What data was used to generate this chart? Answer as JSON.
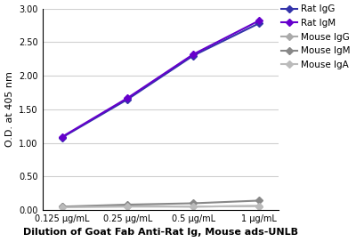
{
  "x_labels": [
    "0.125 μg/mL",
    "0.25 μg/mL",
    "0.5 μg/mL",
    "1 μg/mL"
  ],
  "x_values": [
    0,
    1,
    2,
    3
  ],
  "series": [
    {
      "label": "Rat IgG",
      "values": [
        1.08,
        1.65,
        2.3,
        2.78
      ],
      "color": "#3333aa",
      "marker": "D",
      "linewidth": 1.5,
      "markersize": 4
    },
    {
      "label": "Rat IgM",
      "values": [
        1.09,
        1.67,
        2.32,
        2.82
      ],
      "color": "#6600cc",
      "marker": "D",
      "linewidth": 1.5,
      "markersize": 4
    },
    {
      "label": "Mouse IgG",
      "values": [
        0.05,
        0.06,
        0.05,
        0.06
      ],
      "color": "#aaaaaa",
      "marker": "D",
      "linewidth": 1.5,
      "markersize": 4
    },
    {
      "label": "Mouse IgM",
      "values": [
        0.05,
        0.08,
        0.1,
        0.14
      ],
      "color": "#888888",
      "marker": "D",
      "linewidth": 1.5,
      "markersize": 4
    },
    {
      "label": "Mouse IgA",
      "values": [
        0.04,
        0.05,
        0.05,
        0.06
      ],
      "color": "#bbbbbb",
      "marker": "D",
      "linewidth": 1.5,
      "markersize": 4
    }
  ],
  "ylabel": "O.D. at 405 nm",
  "xlabel": "Dilution of Goat Fab Anti-Rat Ig, Mouse ads-UNLB",
  "ylim": [
    0.0,
    3.0
  ],
  "yticks": [
    0.0,
    0.5,
    1.0,
    1.5,
    2.0,
    2.5,
    3.0
  ],
  "grid_color": "#d0d0d0",
  "background_color": "#ffffff",
  "ylabel_fontsize": 8,
  "xlabel_fontsize": 8,
  "tick_fontsize": 7,
  "legend_fontsize": 7.5
}
